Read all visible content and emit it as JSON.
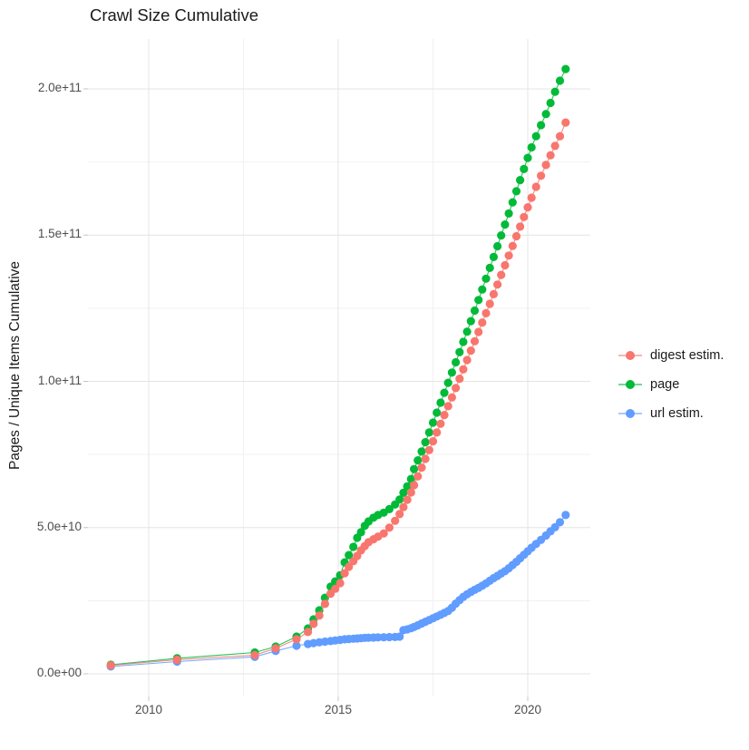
{
  "chart_data": {
    "type": "line",
    "title": "Crawl Size Cumulative",
    "xlabel": "",
    "ylabel": "Pages / Unique Items Cumulative",
    "value_unit": "series values stored in billions (1e9 items)",
    "x": [
      2009.0,
      2010.75,
      2012.8,
      2013.35,
      2013.9,
      2014.2,
      2014.35,
      2014.5,
      2014.65,
      2014.8,
      2014.92,
      2015.05,
      2015.17,
      2015.28,
      2015.4,
      2015.5,
      2015.6,
      2015.7,
      2015.8,
      2015.93,
      2016.05,
      2016.2,
      2016.35,
      2016.5,
      2016.62,
      2016.72,
      2016.82,
      2016.92,
      2017.0,
      2017.1,
      2017.2,
      2017.3,
      2017.4,
      2017.5,
      2017.6,
      2017.7,
      2017.8,
      2017.9,
      2018.0,
      2018.1,
      2018.2,
      2018.3,
      2018.4,
      2018.5,
      2018.6,
      2018.7,
      2018.8,
      2018.9,
      2019.0,
      2019.1,
      2019.2,
      2019.3,
      2019.4,
      2019.5,
      2019.6,
      2019.7,
      2019.8,
      2019.9,
      2020.0,
      2020.1,
      2020.22,
      2020.35,
      2020.48,
      2020.6,
      2020.72,
      2020.85,
      2021.0
    ],
    "series": [
      {
        "key": "digest_estim",
        "name": "digest estim.",
        "color": "#F8766D",
        "values": [
          2.9,
          4.8,
          6.4,
          8.7,
          11.8,
          14.3,
          17.1,
          19.9,
          23.9,
          27.4,
          29.1,
          31.0,
          34.4,
          36.6,
          38.5,
          40.3,
          42.2,
          43.7,
          45.0,
          46.0,
          46.9,
          48.0,
          50.0,
          52.3,
          54.6,
          57.0,
          59.5,
          62.0,
          64.5,
          67.5,
          70.5,
          73.5,
          76.5,
          79.5,
          82.5,
          85.5,
          88.5,
          91.5,
          94.5,
          97.7,
          100.9,
          104.1,
          107.3,
          110.5,
          113.7,
          116.9,
          120.1,
          123.3,
          126.5,
          129.8,
          133.1,
          136.4,
          139.7,
          143.0,
          146.3,
          149.6,
          152.9,
          156.2,
          159.5,
          162.8,
          166.5,
          170.3,
          174.0,
          177.3,
          180.5,
          183.8,
          188.5
        ]
      },
      {
        "key": "page",
        "name": "page",
        "color": "#00BA38",
        "values": [
          3.1,
          5.3,
          7.3,
          9.3,
          12.7,
          15.5,
          18.6,
          21.7,
          26.0,
          29.8,
          31.6,
          33.7,
          38.1,
          40.6,
          43.4,
          46.5,
          48.4,
          50.6,
          52.1,
          53.4,
          54.3,
          55.1,
          56.3,
          57.9,
          59.6,
          61.9,
          64.1,
          66.6,
          70.0,
          73.0,
          76.0,
          79.2,
          82.5,
          85.9,
          89.3,
          92.7,
          96.1,
          99.5,
          103.0,
          106.5,
          110.0,
          113.5,
          117.0,
          120.6,
          124.2,
          127.8,
          131.4,
          135.1,
          138.8,
          142.5,
          146.2,
          149.9,
          153.6,
          157.4,
          161.2,
          165.0,
          168.8,
          172.6,
          176.4,
          180.0,
          183.8,
          187.6,
          191.4,
          195.2,
          199.0,
          202.8,
          206.8
        ]
      },
      {
        "key": "url_estim",
        "name": "url estim.",
        "color": "#619CFF",
        "values": [
          2.5,
          4.2,
          5.8,
          7.8,
          9.6,
          10.2,
          10.5,
          10.8,
          11.0,
          11.2,
          11.4,
          11.6,
          11.8,
          11.9,
          12.0,
          12.1,
          12.2,
          12.3,
          12.35,
          12.4,
          12.45,
          12.5,
          12.55,
          12.6,
          12.7,
          14.9,
          15.2,
          15.6,
          16.0,
          16.6,
          17.2,
          17.8,
          18.4,
          19.0,
          19.6,
          20.2,
          20.8,
          21.5,
          22.6,
          24.0,
          25.2,
          26.3,
          27.2,
          28.0,
          28.7,
          29.4,
          30.1,
          30.9,
          31.8,
          32.7,
          33.5,
          34.3,
          35.1,
          36.1,
          37.2,
          38.3,
          39.5,
          40.7,
          41.9,
          43.1,
          44.4,
          45.8,
          47.3,
          48.7,
          50.1,
          51.8,
          54.3
        ]
      }
    ],
    "axes": {
      "x_major_breaks": [
        2010,
        2015,
        2020
      ],
      "x_tick_labels": [
        "2010",
        "2015",
        "2020"
      ],
      "x_minor_breaks": [
        2012.5,
        2017.5
      ],
      "y_major_breaks_billions": [
        0,
        50,
        100,
        150,
        200
      ],
      "y_tick_labels": [
        "0.0e+00",
        "5.0e+10",
        "1.0e+11",
        "1.5e+11",
        "2.0e+11"
      ],
      "y_minor_breaks_billions": [
        25,
        75,
        125,
        175
      ],
      "x_range_years": [
        2008.4,
        2021.7
      ],
      "y_range_billions": [
        -8,
        218
      ]
    },
    "legend_position": "right",
    "grid": true,
    "background": "#FFFFFF",
    "grid_major_color": "#E4E4E4",
    "grid_minor_color": "#F1F1F1",
    "tick_color": "#C4C4C4",
    "axis_text_color": "#4D4D4D",
    "title_color": "#1A1A1A"
  }
}
